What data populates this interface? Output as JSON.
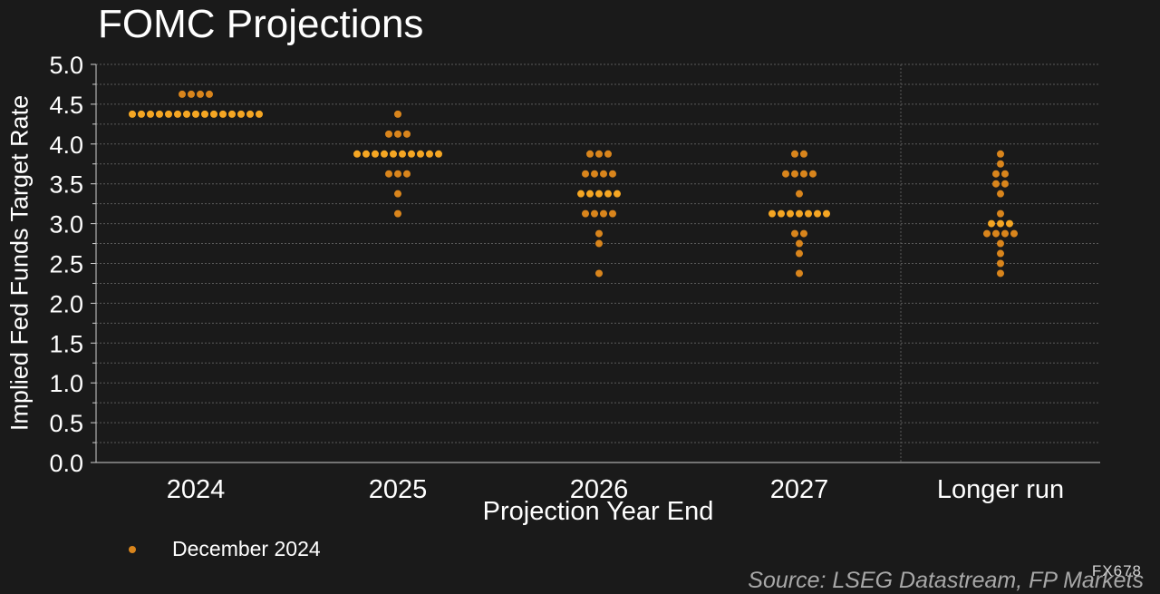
{
  "title": "FOMC Projections",
  "source": "Source: LSEG Datastream, FP Markets",
  "code": "FX678",
  "colors": {
    "background": "#1a1a1a",
    "dot": "#d9851c",
    "median_dot": "#f5a623",
    "grid": "#5a5a5a",
    "text": "#ffffff"
  },
  "chart_data": {
    "type": "scatter",
    "title": "FOMC Projections",
    "xlabel": "Projection Year End",
    "ylabel": "Implied Fed Funds Target Rate",
    "ylim": [
      0,
      5
    ],
    "yticks": [
      "0.0",
      "0.5",
      "1.0",
      "1.5",
      "2.0",
      "2.5",
      "3.0",
      "3.5",
      "4.0",
      "4.5",
      "5.0"
    ],
    "categories": [
      "2024",
      "2025",
      "2026",
      "2027",
      "Longer run"
    ],
    "grid": true,
    "legend_position": "bottom-left",
    "series": [
      {
        "name": "December 2024",
        "points": [
          {
            "category": "2024",
            "rates": [
              {
                "y": 4.625,
                "count": 4
              },
              {
                "y": 4.375,
                "count": 15
              }
            ]
          },
          {
            "category": "2025",
            "rates": [
              {
                "y": 4.375,
                "count": 1
              },
              {
                "y": 4.125,
                "count": 3
              },
              {
                "y": 3.875,
                "count": 10
              },
              {
                "y": 3.625,
                "count": 3
              },
              {
                "y": 3.375,
                "count": 1
              },
              {
                "y": 3.125,
                "count": 1
              }
            ]
          },
          {
            "category": "2026",
            "rates": [
              {
                "y": 3.875,
                "count": 3
              },
              {
                "y": 3.625,
                "count": 4
              },
              {
                "y": 3.375,
                "count": 5
              },
              {
                "y": 3.125,
                "count": 4
              },
              {
                "y": 2.875,
                "count": 1
              },
              {
                "y": 2.75,
                "count": 1
              },
              {
                "y": 2.375,
                "count": 1
              }
            ]
          },
          {
            "category": "2027",
            "rates": [
              {
                "y": 3.875,
                "count": 2
              },
              {
                "y": 3.625,
                "count": 4
              },
              {
                "y": 3.375,
                "count": 1
              },
              {
                "y": 3.125,
                "count": 7
              },
              {
                "y": 2.875,
                "count": 2
              },
              {
                "y": 2.75,
                "count": 1
              },
              {
                "y": 2.625,
                "count": 1
              },
              {
                "y": 2.375,
                "count": 1
              }
            ]
          },
          {
            "category": "Longer run",
            "rates": [
              {
                "y": 3.875,
                "count": 1
              },
              {
                "y": 3.75,
                "count": 1
              },
              {
                "y": 3.625,
                "count": 2
              },
              {
                "y": 3.5,
                "count": 2
              },
              {
                "y": 3.375,
                "count": 1
              },
              {
                "y": 3.125,
                "count": 1
              },
              {
                "y": 3.0,
                "count": 3
              },
              {
                "y": 2.875,
                "count": 4
              },
              {
                "y": 2.75,
                "count": 1
              },
              {
                "y": 2.625,
                "count": 1
              },
              {
                "y": 2.5,
                "count": 1
              },
              {
                "y": 2.375,
                "count": 1
              }
            ]
          }
        ],
        "median": {
          "2024": 4.375,
          "2025": 3.875,
          "2026": 3.375,
          "2027": 3.125,
          "Longer run": 3.0
        }
      }
    ]
  }
}
